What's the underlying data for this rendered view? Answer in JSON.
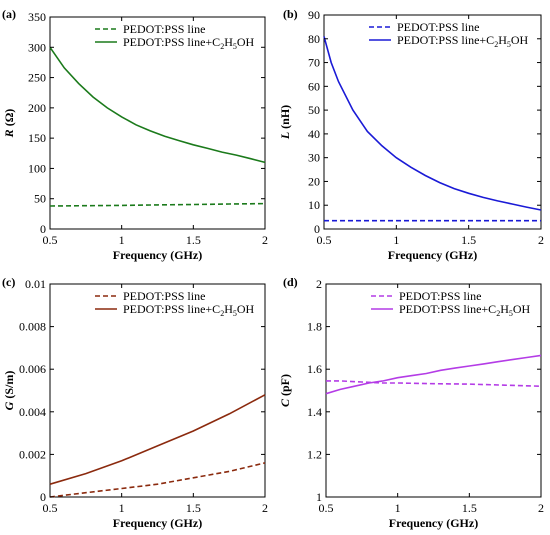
{
  "chart_data": [
    {
      "panel": "(a)",
      "type": "line",
      "xlabel": "Frequency (GHz)",
      "ylabel_var": "R",
      "ylabel_unit": " (Ω)",
      "xlim": [
        0.5,
        2
      ],
      "ylim": [
        0,
        350
      ],
      "xticks": [
        "0.5",
        "1",
        "1.5",
        "2"
      ],
      "xtick_values": [
        0.5,
        1,
        1.5,
        2
      ],
      "yticks": [
        "0",
        "50",
        "100",
        "150",
        "200",
        "250",
        "300",
        "350"
      ],
      "ytick_values": [
        0,
        50,
        100,
        150,
        200,
        250,
        300,
        350
      ],
      "legend_position": "top-right",
      "series": [
        {
          "name": "PEDOT:PSS line",
          "legend_main": "PEDOT:PSS line",
          "color": "#1b7a1b",
          "dash": true,
          "x": [
            0.5,
            0.75,
            1.0,
            1.25,
            1.5,
            1.75,
            2.0
          ],
          "y": [
            38,
            38.5,
            39,
            39.8,
            40.5,
            41.3,
            42
          ]
        },
        {
          "name": "PEDOT:PSS line+C2H5OH",
          "legend_main": "PEDOT:PSS line+C",
          "legend_sub1": "2",
          "legend_mid": "H",
          "legend_sub2": "5",
          "legend_end": "OH",
          "color": "#1b7a1b",
          "dash": false,
          "x": [
            0.5,
            0.6,
            0.7,
            0.8,
            0.9,
            1.0,
            1.1,
            1.2,
            1.3,
            1.4,
            1.5,
            1.6,
            1.7,
            1.8,
            1.9,
            2.0
          ],
          "y": [
            300,
            266,
            240,
            218,
            200,
            185,
            172,
            162,
            153,
            146,
            139,
            133,
            127,
            122,
            116,
            110
          ]
        }
      ]
    },
    {
      "panel": "(b)",
      "type": "line",
      "xlabel": "Frequency (GHz)",
      "ylabel_var": "L",
      "ylabel_unit": " (nH)",
      "xlim": [
        0.5,
        2
      ],
      "ylim": [
        0,
        90
      ],
      "xticks": [
        "0.5",
        "1",
        "1.5",
        "2"
      ],
      "xtick_values": [
        0.5,
        1,
        1.5,
        2
      ],
      "yticks": [
        "0",
        "10",
        "20",
        "30",
        "40",
        "50",
        "60",
        "70",
        "80",
        "90"
      ],
      "ytick_values": [
        0,
        10,
        20,
        30,
        40,
        50,
        60,
        70,
        80,
        90
      ],
      "legend_position": "top-right",
      "series": [
        {
          "name": "PEDOT:PSS line",
          "legend_main": "PEDOT:PSS line",
          "color": "#1a1ad6",
          "dash": true,
          "x": [
            0.5,
            1.0,
            1.5,
            2.0
          ],
          "y": [
            3.5,
            3.5,
            3.5,
            3.5
          ]
        },
        {
          "name": "PEDOT:PSS line+C2H5OH",
          "legend_main": "PEDOT:PSS line+C",
          "legend_sub1": "2",
          "legend_mid": "H",
          "legend_sub2": "5",
          "legend_end": "OH",
          "color": "#1a1ad6",
          "dash": false,
          "x": [
            0.5,
            0.55,
            0.6,
            0.7,
            0.8,
            0.9,
            1.0,
            1.1,
            1.2,
            1.3,
            1.4,
            1.5,
            1.6,
            1.7,
            1.8,
            1.9,
            2.0
          ],
          "y": [
            81,
            70,
            62,
            50,
            41,
            35,
            30,
            26,
            22.5,
            19.5,
            17,
            15,
            13.3,
            11.8,
            10.5,
            9.2,
            8
          ]
        }
      ]
    },
    {
      "panel": "(c)",
      "type": "line",
      "xlabel": "Frequency (GHz)",
      "ylabel_var": "G",
      "ylabel_unit": " (S/m)",
      "xlim": [
        0.5,
        2
      ],
      "ylim": [
        0,
        0.01
      ],
      "xticks": [
        "0.5",
        "1",
        "1.5",
        "2"
      ],
      "xtick_values": [
        0.5,
        1,
        1.5,
        2
      ],
      "yticks": [
        "0",
        "0.002",
        "0.004",
        "0.006",
        "0.008",
        "0.01"
      ],
      "ytick_values": [
        0,
        0.002,
        0.004,
        0.006,
        0.008,
        0.01
      ],
      "legend_position": "top-right",
      "series": [
        {
          "name": "PEDOT:PSS line",
          "legend_main": "PEDOT:PSS line",
          "color": "#8b2a0e",
          "dash": true,
          "x": [
            0.5,
            0.75,
            1.0,
            1.25,
            1.5,
            1.75,
            2.0
          ],
          "y": [
            0.0,
            0.0002,
            0.0004,
            0.0006,
            0.0009,
            0.0012,
            0.0016
          ]
        },
        {
          "name": "PEDOT:PSS line+C2H5OH",
          "legend_main": "PEDOT:PSS line+C",
          "legend_sub1": "2",
          "legend_mid": "H",
          "legend_sub2": "5",
          "legend_end": "OH",
          "color": "#8b2a0e",
          "dash": false,
          "x": [
            0.5,
            0.75,
            1.0,
            1.25,
            1.5,
            1.75,
            2.0
          ],
          "y": [
            0.0006,
            0.0011,
            0.0017,
            0.0024,
            0.0031,
            0.0039,
            0.0048
          ]
        }
      ]
    },
    {
      "panel": "(d)",
      "type": "line",
      "xlabel": "Frequency (GHz)",
      "ylabel_var": "C",
      "ylabel_unit": " (pF)",
      "xlim": [
        0.5,
        2
      ],
      "ylim": [
        1,
        2
      ],
      "xticks": [
        "0.5",
        "1",
        "1.5",
        "2"
      ],
      "xtick_values": [
        0.5,
        1,
        1.5,
        2
      ],
      "yticks": [
        "1",
        "1.2",
        "1.4",
        "1.6",
        "1.8",
        "2"
      ],
      "ytick_values": [
        1,
        1.2,
        1.4,
        1.6,
        1.8,
        2
      ],
      "legend_position": "top-right",
      "series": [
        {
          "name": "PEDOT:PSS line",
          "legend_main": "PEDOT:PSS line",
          "color": "#b43ce6",
          "dash": true,
          "x": [
            0.5,
            0.6,
            0.75,
            0.9,
            1.0,
            1.25,
            1.5,
            1.75,
            2.0
          ],
          "y": [
            1.545,
            1.545,
            1.54,
            1.535,
            1.535,
            1.532,
            1.53,
            1.525,
            1.52
          ]
        },
        {
          "name": "PEDOT:PSS line+C2H5OH",
          "legend_main": "PEDOT:PSS line+C",
          "legend_sub1": "2",
          "legend_mid": "H",
          "legend_sub2": "5",
          "legend_end": "OH",
          "color": "#b43ce6",
          "dash": false,
          "x": [
            0.5,
            0.6,
            0.7,
            0.8,
            0.9,
            1.0,
            1.1,
            1.2,
            1.3,
            1.4,
            1.5,
            1.6,
            1.7,
            1.8,
            1.9,
            2.0
          ],
          "y": [
            1.485,
            1.505,
            1.52,
            1.535,
            1.545,
            1.56,
            1.57,
            1.58,
            1.595,
            1.605,
            1.615,
            1.625,
            1.635,
            1.645,
            1.655,
            1.665
          ]
        }
      ]
    }
  ]
}
